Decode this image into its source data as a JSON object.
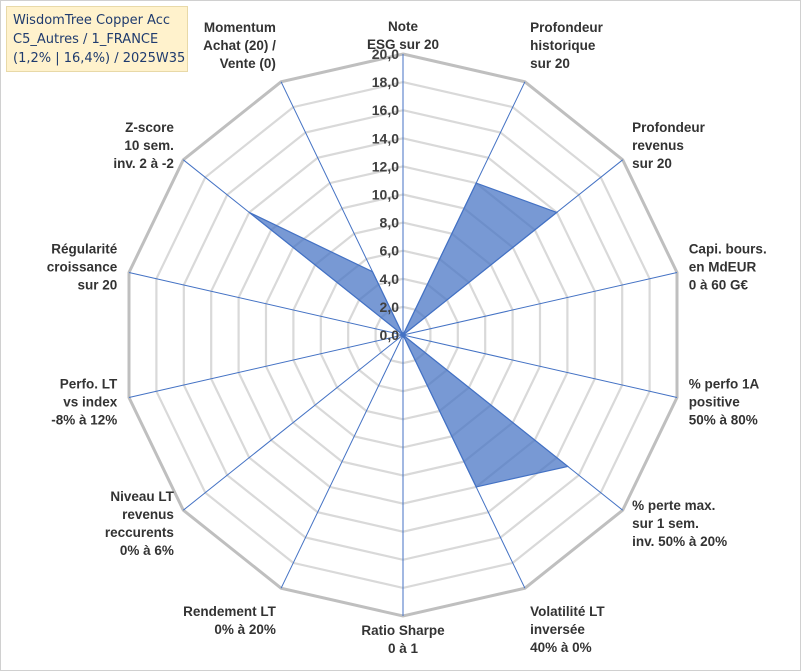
{
  "title_box": {
    "line1": "WisdomTree Copper Acc",
    "line2": "C5_Autres / 1_FRANCE",
    "line3": "(1,2% | 16,4%) / 2025W35"
  },
  "chart_data": {
    "type": "radar",
    "r_min": 0,
    "r_max": 20,
    "r_tick_step": 2,
    "tick_labels": [
      "0,0",
      "2,0",
      "4,0",
      "6,0",
      "8,0",
      "10,0",
      "12,0",
      "14,0",
      "16,0",
      "18,0",
      "20,0"
    ],
    "axes": [
      {
        "lines": [
          "Note",
          "ESG sur 20"
        ]
      },
      {
        "lines": [
          "Profondeur",
          "historique",
          "sur 20"
        ]
      },
      {
        "lines": [
          "Profondeur",
          "revenus",
          "sur 20"
        ]
      },
      {
        "lines": [
          "Capi. bours.",
          "en MdEUR",
          "0 à 60 G€"
        ]
      },
      {
        "lines": [
          "% perfo 1A",
          "positive",
          "50% à 80%"
        ]
      },
      {
        "lines": [
          "% perte max.",
          "sur 1 sem.",
          "inv. 50% à 20%"
        ]
      },
      {
        "lines": [
          "Volatilité LT",
          "inversée",
          "40% à 0%"
        ]
      },
      {
        "lines": [
          "Ratio Sharpe",
          "0 à 1"
        ]
      },
      {
        "lines": [
          "Rendement LT",
          "0% à 20%"
        ]
      },
      {
        "lines": [
          "Niveau LT",
          "revenus",
          "reccurents",
          "0% à 6%"
        ]
      },
      {
        "lines": [
          "Perfo. LT",
          "vs index",
          "-8% à 12%"
        ]
      },
      {
        "lines": [
          "Régularité",
          "croissance",
          "sur 20"
        ]
      },
      {
        "lines": [
          "Z-score",
          "10 sem.",
          "inv. 2 à -2"
        ]
      },
      {
        "lines": [
          "Momentum",
          "Achat (20) /",
          "Vente (0)"
        ]
      }
    ],
    "series": [
      {
        "values": [
          0.0,
          12.0,
          14.0,
          0.0,
          0.0,
          15.0,
          12.0,
          0.0,
          0.0,
          0.0,
          0.0,
          0.0,
          14.0,
          5.0
        ]
      }
    ],
    "series_color": "#4472c4",
    "grid": true
  }
}
